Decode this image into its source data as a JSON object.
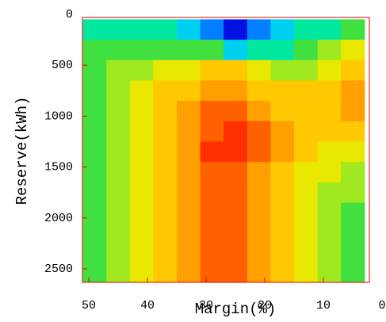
{
  "chart_data": {
    "type": "contour",
    "xlabel": "Margin(%)",
    "ylabel": "Reserve(kWh)",
    "x": [
      49,
      45,
      41,
      37,
      33,
      29,
      25,
      21,
      17,
      13,
      9,
      5
    ],
    "y": [
      150,
      350,
      550,
      750,
      950,
      1150,
      1350,
      1550,
      1750,
      1950,
      2150,
      2350,
      2550
    ],
    "z": [
      [
        3,
        3,
        3,
        3,
        2,
        1,
        0,
        1,
        2,
        3,
        3,
        4
      ],
      [
        4,
        4,
        4,
        4,
        4,
        4,
        2,
        3,
        3,
        4,
        5,
        6
      ],
      [
        4,
        5,
        5,
        6,
        6,
        7,
        7,
        6,
        5,
        5,
        6,
        7
      ],
      [
        4,
        5,
        6,
        7,
        7,
        8,
        8,
        7,
        7,
        7,
        7,
        8
      ],
      [
        4,
        5,
        6,
        7,
        8,
        9,
        9,
        8,
        7,
        7,
        7,
        8
      ],
      [
        4,
        5,
        6,
        7,
        8,
        9,
        10,
        9,
        8,
        7,
        7,
        7
      ],
      [
        4,
        5,
        6,
        7,
        8,
        10,
        10,
        9,
        8,
        7,
        6,
        6
      ],
      [
        4,
        5,
        6,
        7,
        8,
        9,
        9,
        8,
        7,
        6,
        6,
        5
      ],
      [
        4,
        5,
        6,
        7,
        8,
        9,
        9,
        8,
        7,
        6,
        5,
        5
      ],
      [
        4,
        5,
        6,
        7,
        8,
        9,
        9,
        8,
        7,
        6,
        5,
        4
      ],
      [
        4,
        5,
        6,
        7,
        8,
        9,
        9,
        8,
        7,
        6,
        5,
        4
      ],
      [
        4,
        5,
        6,
        7,
        8,
        9,
        9,
        8,
        7,
        6,
        5,
        4
      ],
      [
        4,
        5,
        6,
        7,
        8,
        9,
        9,
        8,
        7,
        6,
        5,
        4
      ]
    ],
    "colors": [
      "#0010e0",
      "#0080ff",
      "#00d0f0",
      "#00e8a0",
      "#40e040",
      "#a0e820",
      "#e8e800",
      "#ffc800",
      "#ffa000",
      "#ff6000",
      "#ff3000"
    ],
    "xlim": [
      50,
      0
    ],
    "xticks": [
      50,
      40,
      30,
      20,
      10,
      0
    ],
    "ylim": [
      0,
      2500
    ],
    "yticks": [
      0,
      500,
      1000,
      1500,
      2000,
      2500
    ],
    "frame_color": "#e00000"
  }
}
